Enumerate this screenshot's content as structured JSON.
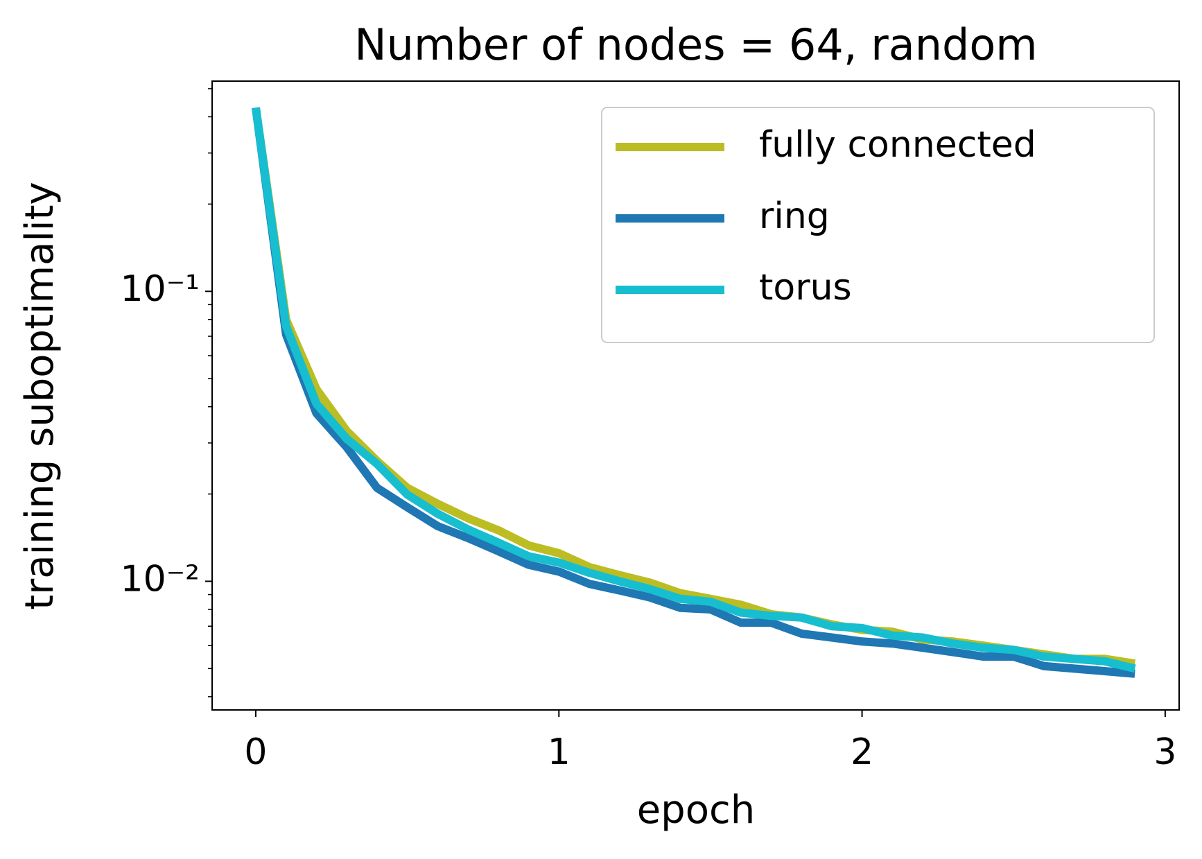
{
  "chart_data": {
    "type": "line",
    "title": "Number of nodes = 64, random",
    "xlabel": "epoch",
    "ylabel": "training suboptimality",
    "yscale": "log",
    "xlim": [
      -0.144,
      3.046
    ],
    "ylim": [
      0.0036,
      0.531
    ],
    "xticks": [
      0,
      1,
      2,
      3
    ],
    "yticks": [
      {
        "value": 0.1,
        "label": "10⁻¹"
      },
      {
        "value": 0.01,
        "label": "10⁻²"
      }
    ],
    "yminorticks": [
      0.004,
      0.005,
      0.006,
      0.007,
      0.008,
      0.009,
      0.02,
      0.03,
      0.04,
      0.05,
      0.06,
      0.07,
      0.08,
      0.09,
      0.2,
      0.3,
      0.4,
      0.5
    ],
    "legend": "upper right",
    "grid": false,
    "x": [
      0,
      0.1,
      0.2,
      0.3,
      0.4,
      0.5,
      0.6,
      0.7,
      0.8,
      0.9,
      1.0,
      1.1,
      1.2,
      1.3,
      1.4,
      1.5,
      1.6,
      1.7,
      1.8,
      1.9,
      2.0,
      2.1,
      2.2,
      2.3,
      2.4,
      2.5,
      2.6,
      2.7,
      2.8,
      2.9
    ],
    "series": [
      {
        "name": "fully connected",
        "color": "#bcbd22",
        "values": [
          0.43,
          0.08,
          0.046,
          0.033,
          0.026,
          0.021,
          0.0185,
          0.0165,
          0.015,
          0.0133,
          0.0125,
          0.0112,
          0.0105,
          0.0099,
          0.0091,
          0.0087,
          0.0083,
          0.0077,
          0.0075,
          0.0071,
          0.0068,
          0.0067,
          0.0063,
          0.0062,
          0.006,
          0.0058,
          0.0056,
          0.0054,
          0.0054,
          0.0052
        ]
      },
      {
        "name": "ring",
        "color": "#1f77b4",
        "values": [
          0.43,
          0.071,
          0.038,
          0.029,
          0.021,
          0.018,
          0.0155,
          0.0141,
          0.0127,
          0.0114,
          0.0108,
          0.0098,
          0.0093,
          0.0088,
          0.0081,
          0.008,
          0.0072,
          0.0072,
          0.0066,
          0.0064,
          0.0062,
          0.0061,
          0.0059,
          0.0057,
          0.0055,
          0.0055,
          0.0051,
          0.005,
          0.0049,
          0.0048
        ]
      },
      {
        "name": "torus",
        "color": "#17becf",
        "values": [
          0.43,
          0.076,
          0.041,
          0.031,
          0.0254,
          0.0199,
          0.0171,
          0.0151,
          0.0136,
          0.0122,
          0.0116,
          0.0107,
          0.01,
          0.0094,
          0.0087,
          0.0085,
          0.0078,
          0.0076,
          0.0075,
          0.007,
          0.0069,
          0.0065,
          0.0064,
          0.0061,
          0.0059,
          0.0058,
          0.0055,
          0.0054,
          0.0053,
          0.005
        ]
      }
    ]
  }
}
